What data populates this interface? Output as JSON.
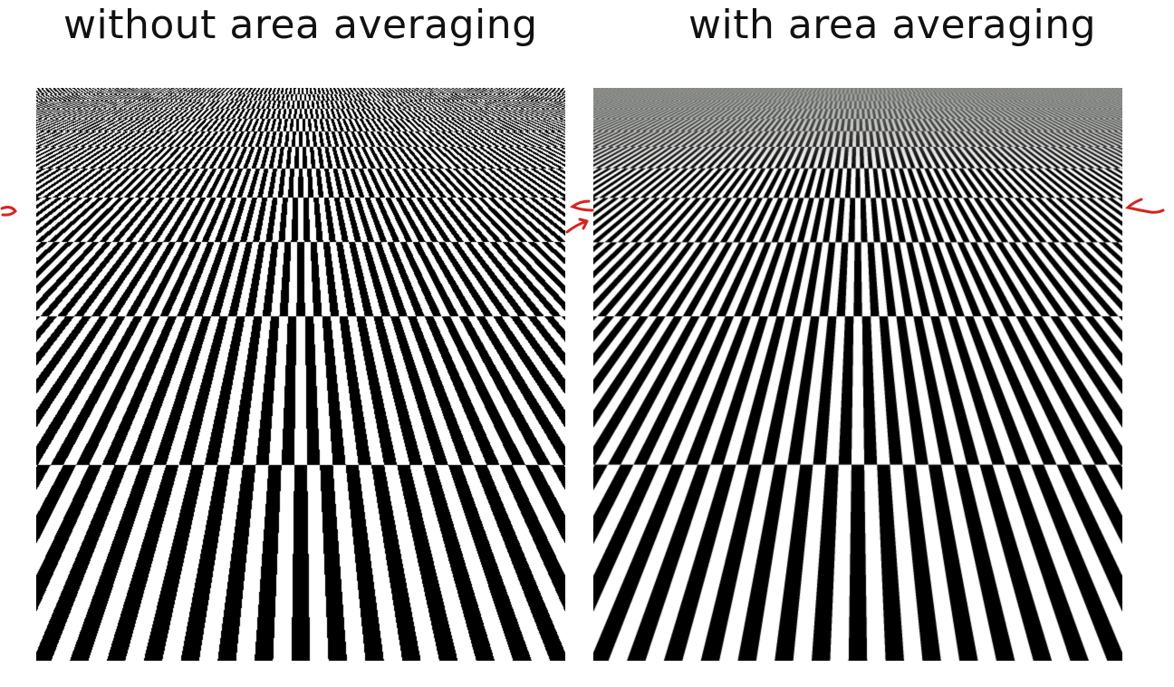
{
  "titles": {
    "left": "without area averaging",
    "right": "with area averaging"
  },
  "colors": {
    "checker_dark": "#000000",
    "checker_light": "#ffffff",
    "horizon_gray": "#8a8d88",
    "annotation_red": "#d8231c"
  },
  "annotations": {
    "icon": "red-arrow-icon"
  }
}
